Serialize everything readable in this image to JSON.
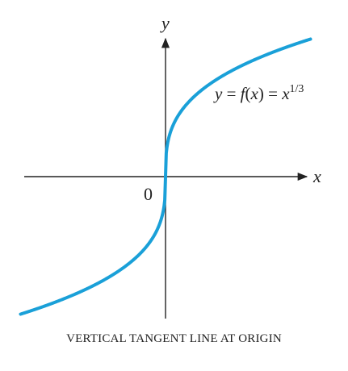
{
  "chart_data": {
    "type": "line",
    "title": "",
    "caption": "VERTICAL TANGENT LINE AT ORIGIN",
    "xlabel": "x",
    "ylabel": "y",
    "origin_label": "0",
    "xlim": [
      -8,
      8
    ],
    "ylim": [
      -2.6,
      2.6
    ],
    "grid": false,
    "legend": "none",
    "annotation": {
      "y": "y",
      "eq1": " = ",
      "f": "f",
      "paren_open": "(",
      "x1": "x",
      "paren_close": ")",
      "eq2": " = ",
      "x2": "x",
      "exponent": "1/3"
    },
    "series": [
      {
        "function": "x^(1/3)",
        "color": "#1aa0d8",
        "x": [
          -6.8,
          -5,
          -3.375,
          -2,
          -1,
          -0.5,
          -0.125,
          -0.01,
          0,
          0.01,
          0.125,
          0.5,
          1,
          2,
          3.375,
          5,
          6.8
        ],
        "y": [
          -1.894,
          -1.71,
          -1.5,
          -1.26,
          -1.0,
          -0.794,
          -0.5,
          -0.215,
          0,
          0.215,
          0.5,
          0.794,
          1.0,
          1.26,
          1.5,
          1.71,
          1.894
        ]
      }
    ]
  }
}
